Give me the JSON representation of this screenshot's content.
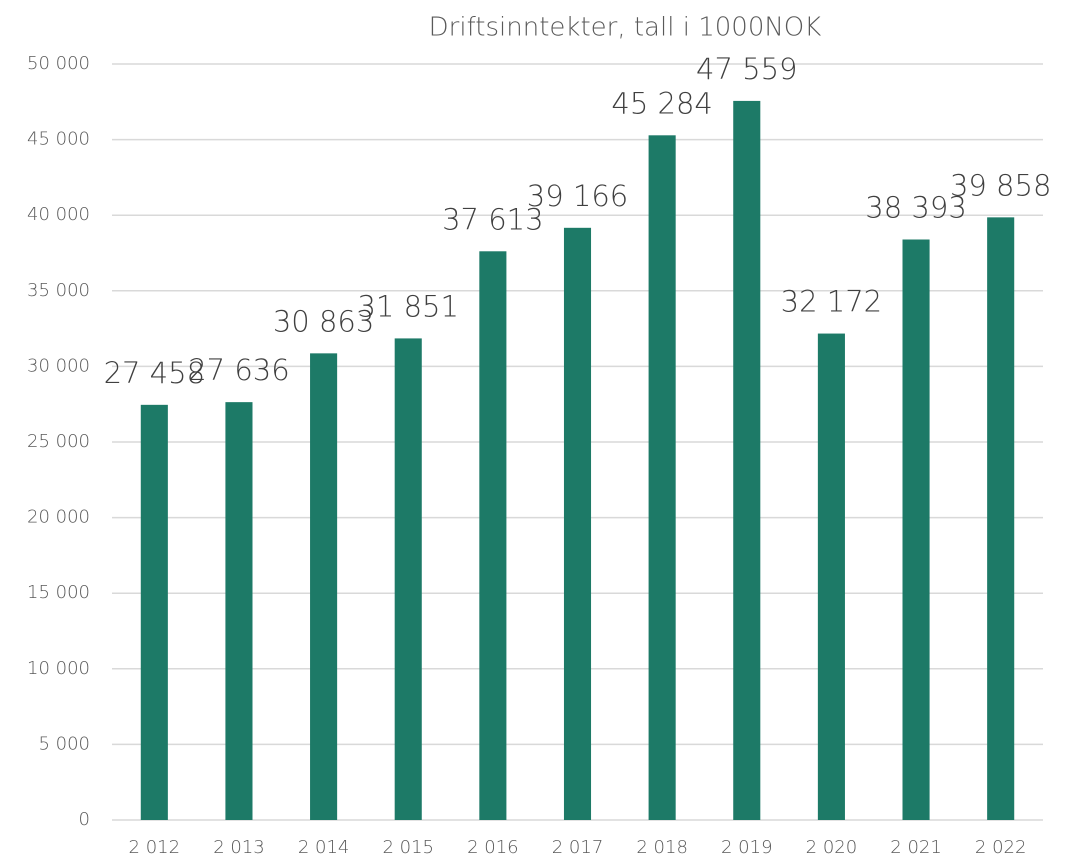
{
  "chart_data": {
    "type": "bar",
    "title": "Driftsinntekter, tall i 1000NOK",
    "categories": [
      "2 012",
      "2 013",
      "2 014",
      "2 015",
      "2 016",
      "2 017",
      "2 018",
      "2 019",
      "2 020",
      "2 021",
      "2 022"
    ],
    "values": [
      27458,
      27636,
      30863,
      31851,
      37613,
      39166,
      45284,
      47559,
      32172,
      38393,
      39858
    ],
    "value_labels": [
      "27 458",
      "27 636",
      "30 863",
      "31 851",
      "37 613",
      "39 166",
      "45 284",
      "47 559",
      "32 172",
      "38 393",
      "39 858"
    ],
    "color": "#1d7a67",
    "ylim": [
      0,
      50000
    ],
    "yticks": [
      0,
      {
        "value": 5000,
        "label": "5 000"
      },
      {
        "value": 10000,
        "label": "10 000"
      },
      {
        "value": 15000,
        "label": "15 000"
      },
      {
        "value": 20000,
        "label": "20 000"
      },
      {
        "value": 25000,
        "label": "25 000"
      },
      {
        "value": 30000,
        "label": "30 000"
      },
      {
        "value": 35000,
        "label": "35 000"
      },
      {
        "value": 40000,
        "label": "40 000"
      },
      {
        "value": 45000,
        "label": "45 000"
      },
      {
        "value": 50000,
        "label": "50 000"
      }
    ],
    "grid": true
  }
}
